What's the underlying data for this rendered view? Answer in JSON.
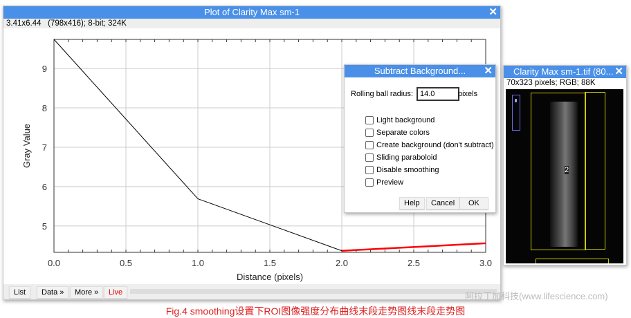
{
  "plot_window": {
    "title": "Plot of Clarity Max sm-1",
    "info": "3.41x6.44   (798x416); 8-bit; 324K",
    "buttons": [
      "List",
      "Data »",
      "More »",
      "Live"
    ],
    "live_color": "#e00000"
  },
  "chart_data": {
    "type": "line",
    "xlabel": "Distance (pixels)",
    "ylabel": "Gray Value",
    "x": [
      0,
      1,
      2,
      3
    ],
    "y": [
      9.74,
      5.69,
      4.37,
      4.56
    ],
    "xlim": [
      0,
      3
    ],
    "ylim": [
      4.33,
      9.74
    ],
    "xticks": [
      "0.0",
      "0.5",
      "1.0",
      "1.5",
      "2.0",
      "2.5",
      "3.0"
    ],
    "yticks": [
      "5",
      "6",
      "7",
      "8",
      "9"
    ],
    "grid": true,
    "line_color": "#000000",
    "last_segment_color": "#ff0000"
  },
  "dialog": {
    "title": "Subtract Background...",
    "radius_label": "Rolling ball radius:",
    "radius_value": "14.0",
    "radius_unit": "pixels",
    "options": [
      {
        "label": "Light background",
        "checked": false
      },
      {
        "label": "Separate colors",
        "checked": false
      },
      {
        "label": "Create background (don't subtract)",
        "checked": false
      },
      {
        "label": "Sliding paraboloid",
        "checked": false
      },
      {
        "label": "Disable smoothing",
        "checked": false
      },
      {
        "label": "Preview",
        "checked": false
      }
    ],
    "help": "Help",
    "cancel": "Cancel",
    "ok": "OK"
  },
  "image_window": {
    "title": "Clarity Max sm-1.tif (80...",
    "info": "70x323 pixels; RGB; 88K",
    "roi_label": "2"
  },
  "watermark": "阿拉丁加科技(www.lifescience.com)",
  "caption": "Fig.4 smoothing设置下ROI图像强度分布曲线末段走势图线末段走势图"
}
